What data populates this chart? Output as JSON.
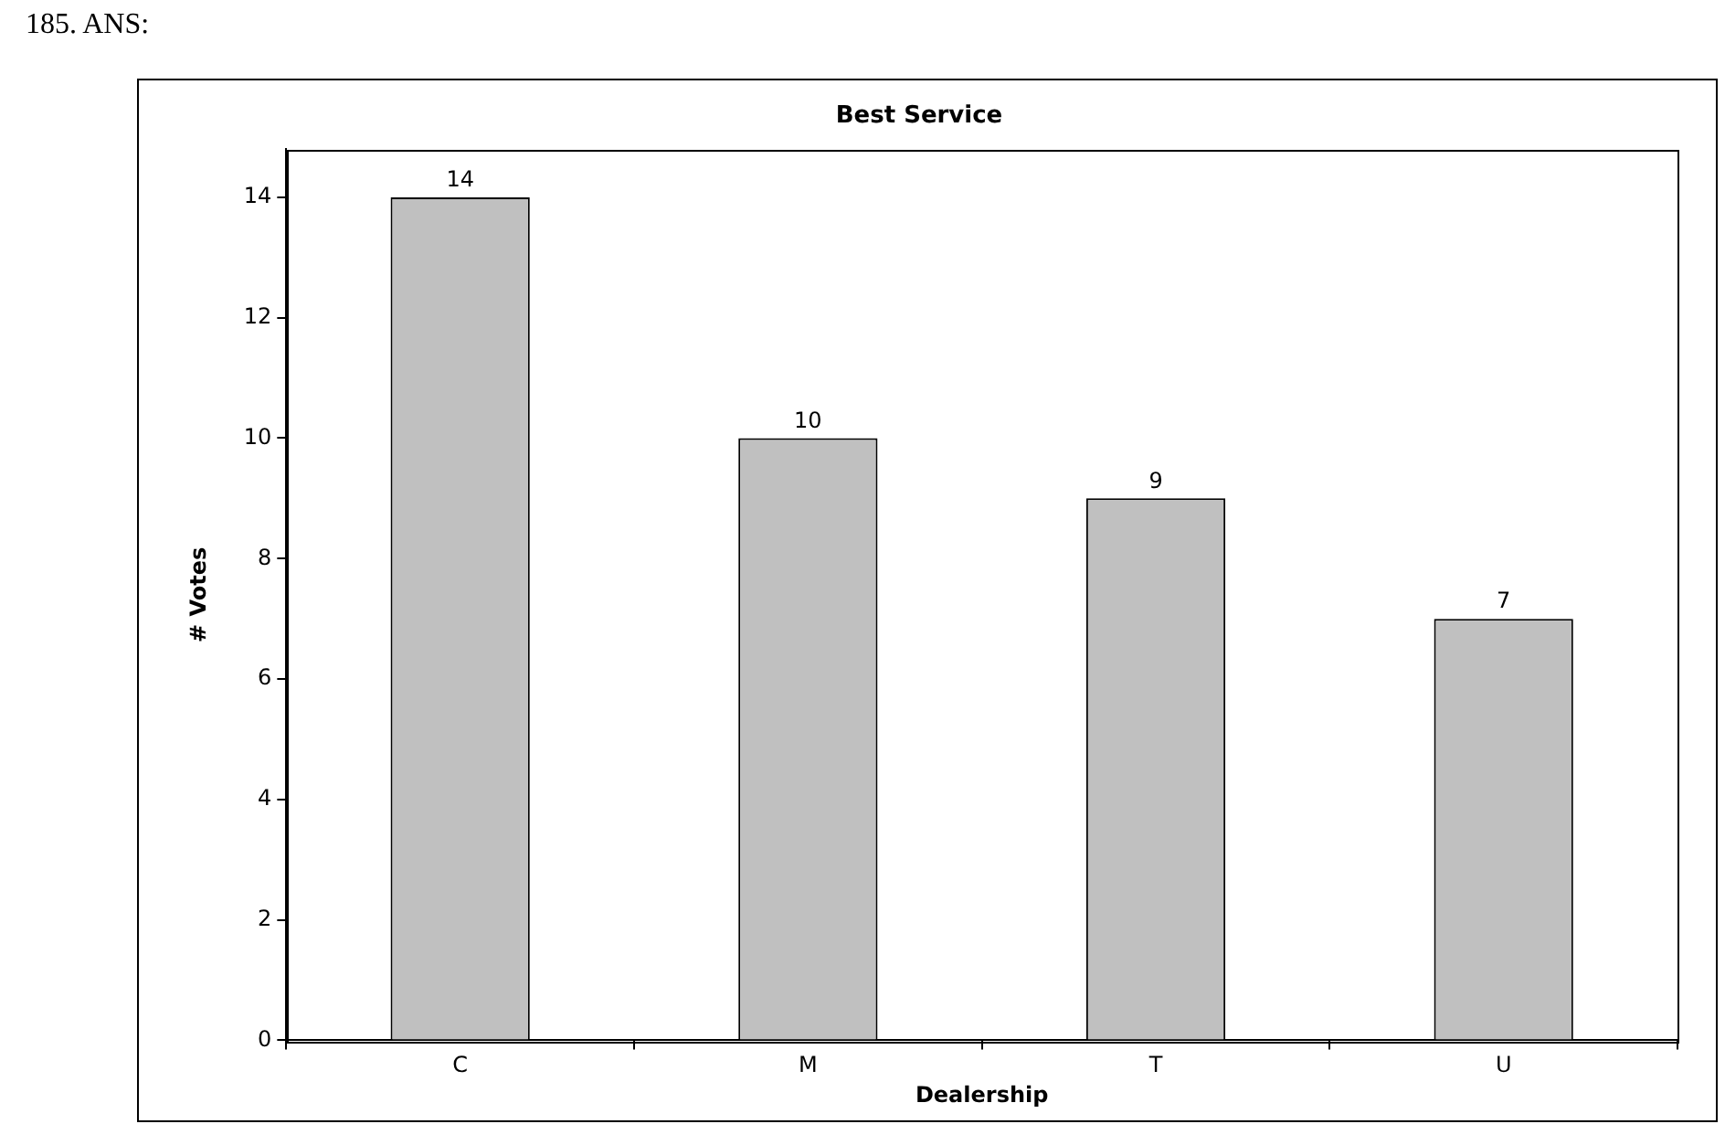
{
  "chart_data": {
    "type": "bar",
    "title": "Best Service",
    "xlabel": "Dealership",
    "ylabel": "# Votes",
    "categories": [
      "C",
      "M",
      "T",
      "U"
    ],
    "values": [
      14,
      10,
      9,
      7
    ],
    "color": "#c0c0c0",
    "ylim": [
      0,
      14.8
    ],
    "yticks": [
      0,
      2,
      4,
      6,
      8,
      10,
      12,
      14
    ],
    "grid": false,
    "legend": false,
    "data_labels": true,
    "annotations": [
      "185. ANS:"
    ]
  }
}
